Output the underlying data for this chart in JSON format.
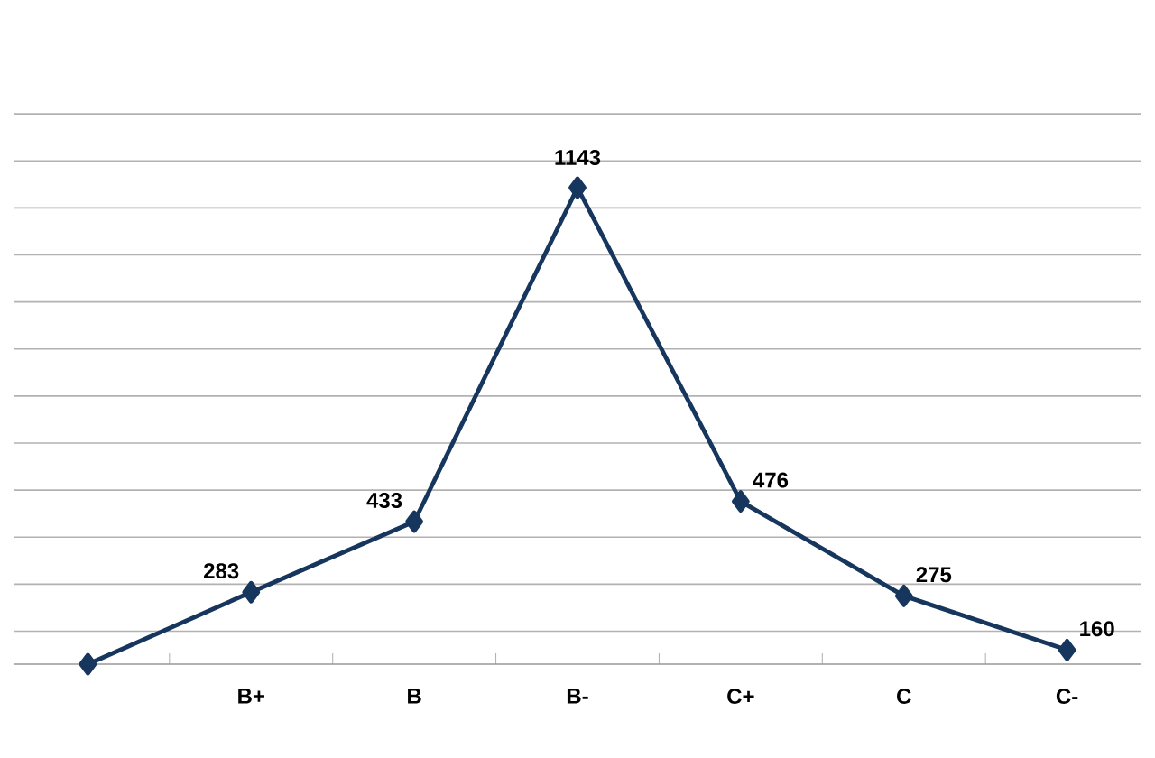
{
  "chart_data": {
    "type": "line",
    "categories": [
      null,
      "B+",
      "B",
      "B-",
      "C+",
      "C",
      "C-"
    ],
    "values": [
      130,
      283,
      433,
      1143,
      476,
      275,
      160
    ],
    "value_labels": [
      null,
      "283",
      "433",
      "1143",
      "476",
      "275",
      "160"
    ],
    "color": "#17365d",
    "grid": "y",
    "marker": "diamond",
    "line_style": "solid"
  }
}
